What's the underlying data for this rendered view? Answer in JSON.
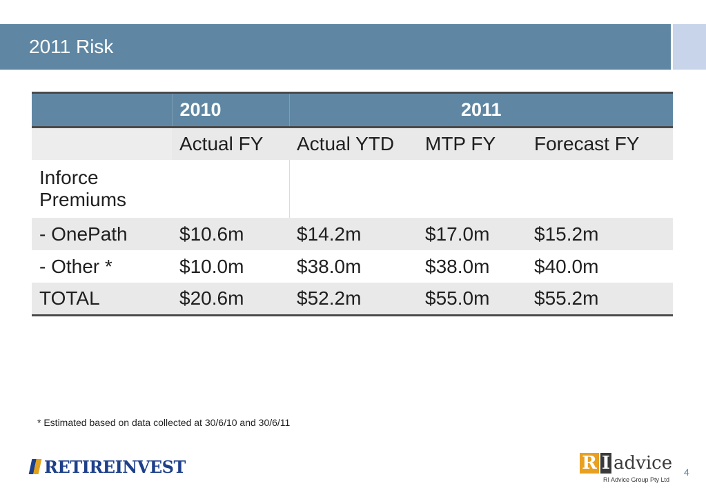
{
  "slide": {
    "title": "2011 Risk",
    "footnote": "* Estimated based on data collected at 30/6/10 and 30/6/11",
    "page_number": "4"
  },
  "table": {
    "group_header": [
      "",
      "2010",
      "2011"
    ],
    "sub_header": [
      "",
      "Actual FY",
      "Actual YTD",
      "MTP FY",
      "Forecast FY"
    ],
    "section_label": "Inforce Premiums",
    "rows": [
      [
        "- OnePath",
        "$10.6m",
        "$14.2m",
        "$17.0m",
        "$15.2m"
      ],
      [
        "- Other *",
        "$10.0m",
        "$38.0m",
        "$38.0m",
        "$40.0m"
      ],
      [
        "TOTAL",
        "$20.6m",
        "$52.2m",
        "$55.0m",
        "$55.2m"
      ]
    ]
  },
  "logos": {
    "left": {
      "word1": "RETIRE",
      "word2": "INVEST"
    },
    "right": {
      "r": "R",
      "i": "I",
      "word": "advice",
      "sub": "RI Advice Group Pty Ltd"
    }
  },
  "colors": {
    "title_bar": "#5f87a3",
    "accent": "#c8d4ea",
    "row_shade": "#e9e9e9"
  }
}
